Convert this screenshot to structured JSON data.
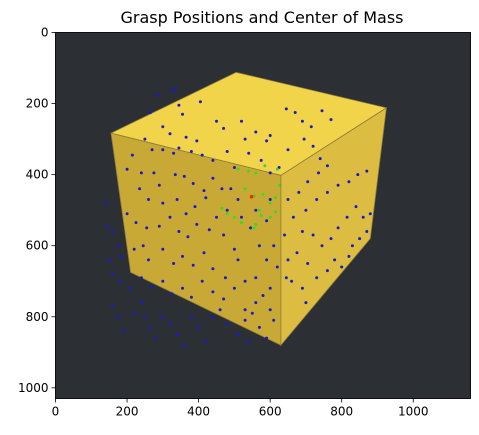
{
  "chart_data": {
    "type": "scatter",
    "title": "Grasp Positions and Center of Mass",
    "xlabel": "",
    "ylabel": "",
    "xlim": [
      0,
      1160
    ],
    "ylim": [
      1030,
      0
    ],
    "x_ticks": [
      0,
      200,
      400,
      600,
      800,
      1000
    ],
    "y_ticks": [
      0,
      200,
      400,
      600,
      800,
      1000
    ],
    "x_tick_labels": [
      "0",
      "200",
      "400",
      "600",
      "800",
      "1000"
    ],
    "y_tick_labels": [
      "0",
      "200",
      "400",
      "600",
      "800",
      "1000"
    ],
    "grid": false,
    "legend": "none",
    "background_image": {
      "description_colors": {
        "backdrop": "#2c2f33",
        "cube_top": "#f2d44a",
        "cube_left": "#c9a935",
        "cube_right": "#dcbd42",
        "cube_edge": "#8a7a3a"
      },
      "cube_faces": {
        "top": [
          [
            155,
            283
          ],
          [
            505,
            112
          ],
          [
            925,
            212
          ],
          [
            630,
            402
          ]
        ],
        "left": [
          [
            155,
            283
          ],
          [
            630,
            402
          ],
          [
            630,
            880
          ],
          [
            210,
            675
          ]
        ],
        "right": [
          [
            630,
            402
          ],
          [
            925,
            212
          ],
          [
            880,
            580
          ],
          [
            630,
            880
          ]
        ]
      }
    },
    "series": [
      {
        "color": "#1a1acc",
        "points": [
          [
            285,
            175
          ],
          [
            325,
            165
          ],
          [
            335,
            158
          ],
          [
            405,
            195
          ],
          [
            265,
            225
          ],
          [
            345,
            205
          ],
          [
            355,
            230
          ],
          [
            450,
            250
          ],
          [
            300,
            265
          ],
          [
            320,
            285
          ],
          [
            365,
            295
          ],
          [
            395,
            305
          ],
          [
            470,
            270
          ],
          [
            520,
            250
          ],
          [
            530,
            300
          ],
          [
            560,
            280
          ],
          [
            590,
            305
          ],
          [
            600,
            290
          ],
          [
            645,
            215
          ],
          [
            670,
            225
          ],
          [
            690,
            250
          ],
          [
            650,
            330
          ],
          [
            695,
            300
          ],
          [
            715,
            265
          ],
          [
            745,
            220
          ],
          [
            770,
            245
          ],
          [
            720,
            320
          ],
          [
            740,
            355
          ],
          [
            250,
            300
          ],
          [
            270,
            330
          ],
          [
            300,
            330
          ],
          [
            330,
            340
          ],
          [
            345,
            325
          ],
          [
            380,
            335
          ],
          [
            410,
            345
          ],
          [
            440,
            360
          ],
          [
            480,
            335
          ],
          [
            500,
            380
          ],
          [
            540,
            340
          ],
          [
            575,
            360
          ],
          [
            600,
            395
          ],
          [
            625,
            380
          ],
          [
            215,
            345
          ],
          [
            200,
            385
          ],
          [
            240,
            395
          ],
          [
            275,
            395
          ],
          [
            290,
            430
          ],
          [
            335,
            400
          ],
          [
            360,
            405
          ],
          [
            385,
            425
          ],
          [
            415,
            445
          ],
          [
            440,
            410
          ],
          [
            465,
            440
          ],
          [
            235,
            440
          ],
          [
            260,
            470
          ],
          [
            300,
            480
          ],
          [
            340,
            470
          ],
          [
            365,
            510
          ],
          [
            390,
            490
          ],
          [
            420,
            465
          ],
          [
            450,
            520
          ],
          [
            480,
            500
          ],
          [
            200,
            510
          ],
          [
            225,
            535
          ],
          [
            255,
            550
          ],
          [
            290,
            545
          ],
          [
            320,
            520
          ],
          [
            345,
            560
          ],
          [
            370,
            575
          ],
          [
            395,
            540
          ],
          [
            430,
            555
          ],
          [
            470,
            570
          ],
          [
            500,
            610
          ],
          [
            140,
            480
          ],
          [
            145,
            545
          ],
          [
            160,
            560
          ],
          [
            175,
            600
          ],
          [
            185,
            630
          ],
          [
            220,
            610
          ],
          [
            245,
            600
          ],
          [
            260,
            640
          ],
          [
            300,
            610
          ],
          [
            330,
            650
          ],
          [
            355,
            630
          ],
          [
            385,
            655
          ],
          [
            415,
            620
          ],
          [
            440,
            665
          ],
          [
            475,
            690
          ],
          [
            510,
            640
          ],
          [
            530,
            700
          ],
          [
            150,
            640
          ],
          [
            160,
            680
          ],
          [
            180,
            700
          ],
          [
            210,
            720
          ],
          [
            240,
            690
          ],
          [
            270,
            715
          ],
          [
            300,
            700
          ],
          [
            325,
            735
          ],
          [
            355,
            720
          ],
          [
            380,
            745
          ],
          [
            410,
            700
          ],
          [
            440,
            730
          ],
          [
            470,
            750
          ],
          [
            500,
            720
          ],
          [
            530,
            780
          ],
          [
            160,
            770
          ],
          [
            175,
            800
          ],
          [
            190,
            840
          ],
          [
            220,
            790
          ],
          [
            240,
            760
          ],
          [
            250,
            800
          ],
          [
            265,
            830
          ],
          [
            280,
            860
          ],
          [
            300,
            800
          ],
          [
            320,
            820
          ],
          [
            340,
            850
          ],
          [
            360,
            880
          ],
          [
            380,
            800
          ],
          [
            400,
            830
          ],
          [
            420,
            870
          ],
          [
            440,
            800
          ],
          [
            460,
            780
          ],
          [
            480,
            820
          ],
          [
            510,
            850
          ],
          [
            530,
            810
          ],
          [
            550,
            790
          ],
          [
            570,
            830
          ],
          [
            590,
            860
          ],
          [
            540,
            870
          ],
          [
            560,
            760
          ],
          [
            600,
            780
          ],
          [
            610,
            810
          ],
          [
            645,
            690
          ],
          [
            660,
            700
          ],
          [
            690,
            720
          ],
          [
            700,
            760
          ],
          [
            650,
            640
          ],
          [
            675,
            620
          ],
          [
            705,
            650
          ],
          [
            730,
            690
          ],
          [
            760,
            670
          ],
          [
            780,
            640
          ],
          [
            800,
            660
          ],
          [
            820,
            630
          ],
          [
            830,
            600
          ],
          [
            850,
            580
          ],
          [
            870,
            560
          ],
          [
            860,
            520
          ],
          [
            880,
            510
          ],
          [
            690,
            560
          ],
          [
            720,
            570
          ],
          [
            745,
            600
          ],
          [
            770,
            580
          ],
          [
            790,
            550
          ],
          [
            815,
            520
          ],
          [
            840,
            490
          ],
          [
            700,
            500
          ],
          [
            730,
            470
          ],
          [
            760,
            450
          ],
          [
            790,
            430
          ],
          [
            820,
            420
          ],
          [
            845,
            400
          ],
          [
            870,
            390
          ],
          [
            650,
            470
          ],
          [
            665,
            520
          ],
          [
            680,
            450
          ],
          [
            705,
            420
          ],
          [
            735,
            395
          ],
          [
            760,
            375
          ],
          [
            640,
            570
          ],
          [
            610,
            600
          ],
          [
            620,
            660
          ],
          [
            600,
            720
          ],
          [
            580,
            740
          ],
          [
            560,
            690
          ],
          [
            590,
            640
          ],
          [
            570,
            600
          ],
          [
            520,
            520
          ],
          [
            545,
            550
          ],
          [
            510,
            470
          ],
          [
            490,
            440
          ],
          [
            560,
            500
          ],
          [
            590,
            530
          ],
          [
            600,
            470
          ]
        ]
      },
      {
        "color": "#33dd22",
        "points": [
          [
            510,
            385
          ],
          [
            540,
            390
          ],
          [
            560,
            395
          ],
          [
            585,
            375
          ],
          [
            620,
            385
          ],
          [
            625,
            430
          ],
          [
            530,
            440
          ],
          [
            555,
            460
          ],
          [
            580,
            455
          ],
          [
            600,
            480
          ],
          [
            615,
            465
          ],
          [
            465,
            495
          ],
          [
            480,
            510
          ],
          [
            500,
            520
          ],
          [
            520,
            535
          ],
          [
            560,
            540
          ],
          [
            575,
            515
          ],
          [
            600,
            520
          ],
          [
            615,
            505
          ],
          [
            570,
            500
          ],
          [
            555,
            550
          ]
        ]
      },
      {
        "color": "#ff2200",
        "points": [
          [
            548,
            462
          ]
        ]
      }
    ]
  }
}
